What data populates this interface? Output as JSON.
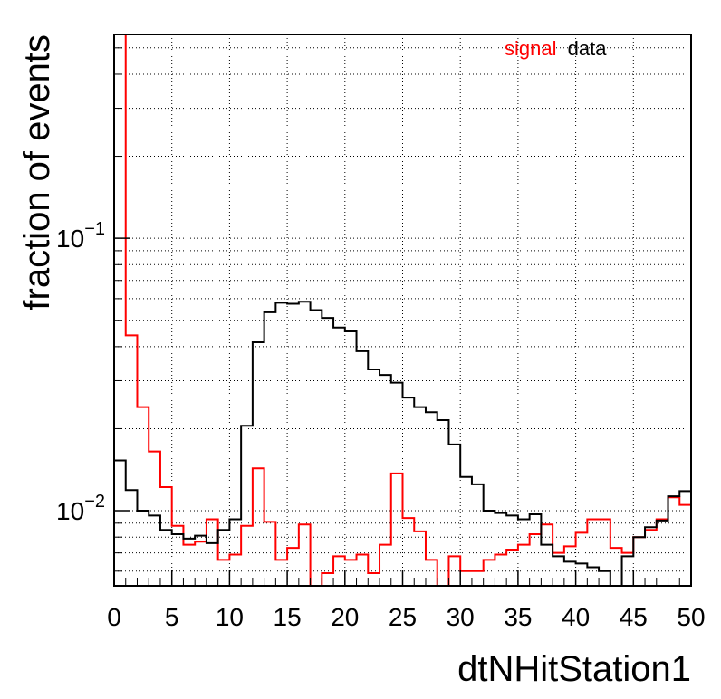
{
  "chart_data": {
    "type": "line",
    "style": "step-histogram",
    "xlabel": "dtNHitStation1",
    "ylabel": "fraction of events",
    "xlim": [
      0,
      50
    ],
    "ylim": [
      0.0053,
      0.56
    ],
    "yscale": "log",
    "grid": true,
    "legend_position": "top-right",
    "x_ticks": [
      "0",
      "5",
      "10",
      "15",
      "20",
      "25",
      "30",
      "35",
      "40",
      "45",
      "50"
    ],
    "y_ticks": [
      {
        "value": 0.1,
        "base": "10",
        "exponent": "−1"
      },
      {
        "value": 0.01,
        "base": "10",
        "exponent": "−2"
      }
    ],
    "bin_edges": [
      0,
      1,
      2,
      3,
      4,
      5,
      6,
      7,
      8,
      9,
      10,
      11,
      12,
      13,
      14,
      15,
      16,
      17,
      18,
      19,
      20,
      21,
      22,
      23,
      24,
      25,
      26,
      27,
      28,
      29,
      30,
      31,
      32,
      33,
      34,
      35,
      36,
      37,
      38,
      39,
      40,
      41,
      42,
      43,
      44,
      45,
      46,
      47,
      48,
      49,
      50
    ],
    "series": [
      {
        "name": "signal",
        "color": "#ff0000",
        "values": [
          0.56,
          0.044,
          0.024,
          0.0165,
          0.0122,
          0.0088,
          0.0075,
          0.0077,
          0.0093,
          0.0066,
          0.0069,
          0.0088,
          0.0143,
          0.0091,
          0.0066,
          0.0073,
          0.0089,
          0.0051,
          0.0059,
          0.0068,
          0.0066,
          0.0069,
          0.0059,
          0.0075,
          0.0137,
          0.0094,
          0.0084,
          0.0066,
          0.0052,
          0.0068,
          0.006,
          0.006,
          0.0066,
          0.0069,
          0.0072,
          0.0075,
          0.0082,
          0.0089,
          0.007,
          0.0074,
          0.0083,
          0.0093,
          0.0093,
          0.0073,
          0.007,
          0.008,
          0.0085,
          0.0093,
          0.0112,
          0.0105
        ]
      },
      {
        "name": "data",
        "color": "#000000",
        "values": [
          0.0153,
          0.0119,
          0.01,
          0.0096,
          0.0085,
          0.0082,
          0.0079,
          0.0081,
          0.0076,
          0.0085,
          0.0093,
          0.0205,
          0.0415,
          0.0535,
          0.058,
          0.0575,
          0.0585,
          0.0545,
          0.051,
          0.047,
          0.0455,
          0.0385,
          0.033,
          0.0315,
          0.0295,
          0.026,
          0.024,
          0.023,
          0.0215,
          0.0175,
          0.0133,
          0.0125,
          0.01,
          0.0098,
          0.0096,
          0.0093,
          0.0097,
          0.0075,
          0.0068,
          0.0065,
          0.0064,
          0.0062,
          0.006,
          0.0052,
          0.0068,
          0.008,
          0.0087,
          0.0092,
          0.0113,
          0.0118
        ]
      }
    ]
  }
}
